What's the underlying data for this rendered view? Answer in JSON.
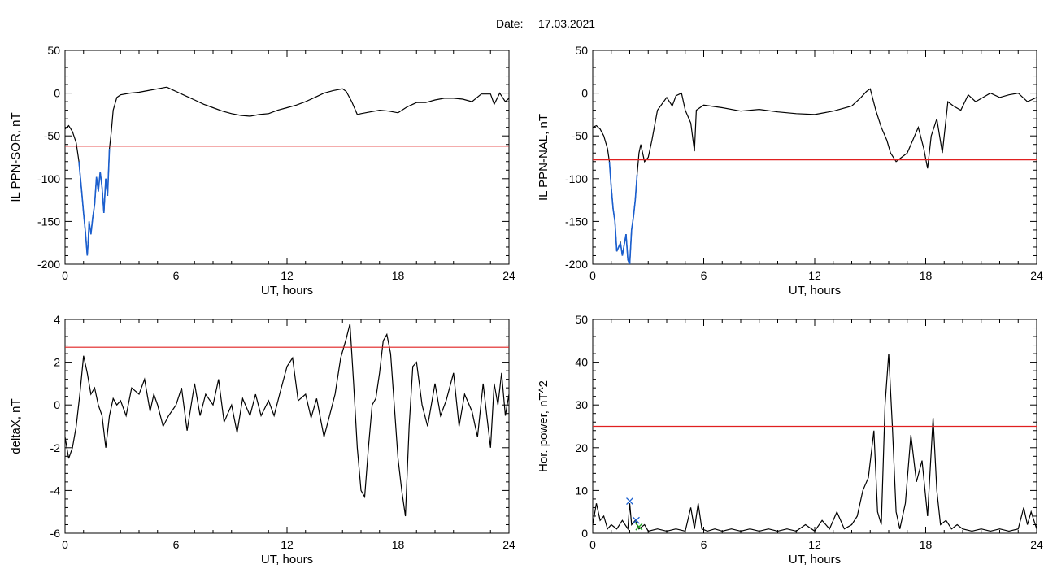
{
  "figure": {
    "date_label": "Date:",
    "date_value": "17.03.2021"
  },
  "chart_data": [
    {
      "type": "line",
      "panel": "top-left",
      "xlabel": "UT, hours",
      "ylabel": "IL PPN-SOR, nT",
      "xlim": [
        0,
        24
      ],
      "ylim": [
        -200,
        50
      ],
      "xticks": [
        0,
        6,
        12,
        18,
        24
      ],
      "yticks": [
        -200,
        -150,
        -100,
        -50,
        0,
        50
      ],
      "threshold": -62,
      "colors": {
        "line": "#000000",
        "highlight": "#1a5fd0",
        "threshold": "#e02020"
      },
      "highlight_below": -62,
      "series": [
        {
          "x": [
            0,
            0.2,
            0.4,
            0.6,
            0.75,
            0.9,
            1.0,
            1.1,
            1.2,
            1.25,
            1.3,
            1.4,
            1.5,
            1.6,
            1.7,
            1.8,
            1.9,
            2.0,
            2.1,
            2.2,
            2.3,
            2.4,
            2.5,
            2.6,
            2.8,
            3.0,
            3.5,
            4.0,
            4.5,
            5.0,
            5.5,
            5.8,
            6.0,
            6.5,
            7.0,
            7.5,
            8.0,
            8.5,
            9.0,
            9.5,
            10.0,
            10.5,
            11.0,
            11.5,
            12.0,
            12.5,
            13.0,
            13.5,
            14.0,
            14.5,
            15.0,
            15.2,
            15.5,
            15.8,
            16.0,
            16.5,
            17.0,
            17.5,
            18.0,
            18.5,
            19.0,
            19.5,
            20.0,
            20.5,
            21.0,
            21.5,
            22.0,
            22.5,
            23.0,
            23.2,
            23.5,
            23.8,
            24.0
          ],
          "y": [
            -42,
            -38,
            -45,
            -58,
            -80,
            -115,
            -140,
            -162,
            -190,
            -175,
            -150,
            -165,
            -145,
            -130,
            -98,
            -115,
            -92,
            -110,
            -140,
            -100,
            -120,
            -65,
            -45,
            -20,
            -5,
            -2,
            0,
            1,
            3,
            5,
            7,
            4,
            2,
            -3,
            -8,
            -13,
            -17,
            -21,
            -24,
            -26,
            -27,
            -25,
            -24,
            -20,
            -17,
            -14,
            -10,
            -5,
            0,
            3,
            5,
            2,
            -10,
            -25,
            -24,
            -22,
            -20,
            -21,
            -23,
            -16,
            -11,
            -11,
            -8,
            -6,
            -6,
            -7,
            -10,
            -1,
            -1,
            -13,
            0,
            -10,
            -6
          ]
        }
      ]
    },
    {
      "type": "line",
      "panel": "top-right",
      "xlabel": "UT, hours",
      "ylabel": "IL PPN-NAL, nT",
      "xlim": [
        0,
        24
      ],
      "ylim": [
        -200,
        50
      ],
      "xticks": [
        0,
        6,
        12,
        18,
        24
      ],
      "yticks": [
        -200,
        -150,
        -100,
        -50,
        0,
        50
      ],
      "threshold": -78,
      "colors": {
        "line": "#000000",
        "highlight": "#1a5fd0",
        "threshold": "#e02020"
      },
      "highlight_below": -78,
      "series": [
        {
          "x": [
            0,
            0.2,
            0.4,
            0.6,
            0.8,
            0.9,
            1.0,
            1.1,
            1.2,
            1.3,
            1.5,
            1.6,
            1.8,
            1.9,
            2.0,
            2.1,
            2.2,
            2.3,
            2.4,
            2.5,
            2.6,
            2.8,
            3.0,
            3.2,
            3.5,
            4.0,
            4.3,
            4.5,
            4.8,
            5.0,
            5.3,
            5.5,
            5.6,
            6.0,
            7.0,
            8.0,
            9.0,
            10.0,
            11.0,
            12.0,
            13.0,
            14.0,
            14.5,
            14.8,
            15.0,
            15.3,
            15.6,
            15.9,
            16.1,
            16.4,
            16.7,
            17.0,
            17.3,
            17.6,
            17.9,
            18.1,
            18.3,
            18.6,
            18.9,
            19.2,
            19.5,
            19.9,
            20.3,
            20.7,
            21.1,
            21.5,
            22.0,
            22.5,
            23.0,
            23.5,
            24.0
          ],
          "y": [
            -40,
            -38,
            -42,
            -50,
            -65,
            -80,
            -110,
            -135,
            -150,
            -185,
            -175,
            -190,
            -165,
            -195,
            -200,
            -160,
            -145,
            -125,
            -95,
            -70,
            -60,
            -80,
            -75,
            -55,
            -20,
            -5,
            -15,
            -3,
            0,
            -20,
            -35,
            -68,
            -20,
            -14,
            -17,
            -21,
            -19,
            -22,
            -24,
            -25,
            -21,
            -15,
            -5,
            2,
            5,
            -20,
            -40,
            -55,
            -70,
            -80,
            -75,
            -70,
            -55,
            -40,
            -65,
            -88,
            -50,
            -30,
            -70,
            -10,
            -15,
            -20,
            -2,
            -10,
            -5,
            0,
            -5,
            -2,
            0,
            -10,
            -5
          ]
        }
      ]
    },
    {
      "type": "line",
      "panel": "bottom-left",
      "xlabel": "UT, hours",
      "ylabel": "deltaX, nT",
      "xlim": [
        0,
        24
      ],
      "ylim": [
        -6,
        4
      ],
      "xticks": [
        0,
        6,
        12,
        18,
        24
      ],
      "yticks": [
        -6,
        -4,
        -2,
        0,
        2,
        4
      ],
      "threshold": 2.7,
      "colors": {
        "line": "#000000",
        "threshold": "#e02020"
      },
      "series": [
        {
          "x": [
            0,
            0.2,
            0.4,
            0.6,
            0.8,
            1.0,
            1.2,
            1.4,
            1.6,
            1.8,
            2.0,
            2.2,
            2.4,
            2.6,
            2.8,
            3.0,
            3.3,
            3.6,
            4.0,
            4.3,
            4.6,
            4.8,
            5.0,
            5.3,
            5.6,
            6.0,
            6.3,
            6.6,
            7.0,
            7.3,
            7.6,
            8.0,
            8.3,
            8.6,
            9.0,
            9.3,
            9.6,
            10.0,
            10.3,
            10.6,
            11.0,
            11.3,
            11.6,
            12.0,
            12.3,
            12.6,
            13.0,
            13.3,
            13.6,
            14.0,
            14.3,
            14.6,
            14.9,
            15.2,
            15.4,
            15.6,
            15.8,
            16.0,
            16.2,
            16.4,
            16.6,
            16.8,
            17.0,
            17.2,
            17.4,
            17.6,
            17.8,
            18.0,
            18.2,
            18.4,
            18.6,
            18.8,
            19.0,
            19.3,
            19.6,
            20.0,
            20.3,
            20.6,
            21.0,
            21.3,
            21.6,
            22.0,
            22.3,
            22.6,
            22.8,
            23.0,
            23.2,
            23.4,
            23.6,
            23.8,
            24.0
          ],
          "y": [
            -1.5,
            -2.5,
            -2.0,
            -1.0,
            0.5,
            2.3,
            1.5,
            0.5,
            0.8,
            0.0,
            -0.5,
            -2.0,
            -0.5,
            0.3,
            0.0,
            0.2,
            -0.5,
            0.8,
            0.5,
            1.2,
            -0.3,
            0.5,
            0.0,
            -1.0,
            -0.5,
            0.0,
            0.8,
            -1.2,
            1.0,
            -0.5,
            0.5,
            0.0,
            1.2,
            -0.8,
            0.0,
            -1.3,
            0.3,
            -0.5,
            0.5,
            -0.5,
            0.2,
            -0.5,
            0.5,
            1.8,
            2.2,
            0.2,
            0.5,
            -0.6,
            0.3,
            -1.5,
            -0.5,
            0.5,
            2.2,
            3.1,
            3.8,
            1.0,
            -2.0,
            -4.0,
            -4.3,
            -2.0,
            0.0,
            0.3,
            1.5,
            3.0,
            3.3,
            2.4,
            0.0,
            -2.5,
            -4.0,
            -5.2,
            -1.0,
            1.8,
            2.0,
            0.0,
            -1.0,
            1.0,
            -0.5,
            0.2,
            1.5,
            -1.0,
            0.5,
            -0.3,
            -1.5,
            1.0,
            -0.5,
            -2.0,
            1.0,
            0.0,
            1.5,
            -0.5,
            0.5
          ]
        }
      ]
    },
    {
      "type": "line",
      "panel": "bottom-right",
      "xlabel": "UT, hours",
      "ylabel": "Hor. power, nT^2",
      "xlim": [
        0,
        24
      ],
      "ylim": [
        0,
        50
      ],
      "xticks": [
        0,
        6,
        12,
        18,
        24
      ],
      "yticks": [
        0,
        10,
        20,
        30,
        40,
        50
      ],
      "threshold": 25,
      "colors": {
        "line": "#000000",
        "threshold": "#e02020",
        "marker_blue": "#1a5fd0",
        "marker_green": "#20a020"
      },
      "markers": [
        {
          "x": 2.0,
          "y": 7.5,
          "color": "blue"
        },
        {
          "x": 2.35,
          "y": 3.0,
          "color": "blue"
        },
        {
          "x": 2.5,
          "y": 1.5,
          "color": "green"
        }
      ],
      "series": [
        {
          "x": [
            0,
            0.2,
            0.4,
            0.6,
            0.8,
            1.0,
            1.3,
            1.6,
            1.9,
            2.0,
            2.1,
            2.3,
            2.5,
            2.8,
            3.0,
            3.5,
            4.0,
            4.5,
            5.0,
            5.3,
            5.5,
            5.7,
            5.9,
            6.2,
            6.6,
            7.0,
            7.5,
            8.0,
            8.5,
            9.0,
            9.5,
            10.0,
            10.5,
            11.0,
            11.5,
            12.0,
            12.4,
            12.8,
            13.2,
            13.6,
            14.0,
            14.3,
            14.6,
            14.9,
            15.2,
            15.4,
            15.6,
            15.8,
            16.0,
            16.2,
            16.4,
            16.6,
            16.9,
            17.2,
            17.5,
            17.8,
            18.1,
            18.4,
            18.6,
            18.8,
            19.1,
            19.4,
            19.7,
            20.0,
            20.5,
            21.0,
            21.5,
            22.0,
            22.5,
            23.0,
            23.3,
            23.5,
            23.7,
            24.0
          ],
          "y": [
            2,
            7,
            3,
            4,
            1,
            2,
            1,
            3,
            1,
            7,
            2,
            3,
            1,
            2,
            0.5,
            1,
            0.5,
            1,
            0.5,
            6,
            1,
            7,
            1,
            0.5,
            1,
            0.5,
            1,
            0.5,
            1,
            0.5,
            1,
            0.5,
            1,
            0.5,
            2,
            0.5,
            3,
            1,
            5,
            1,
            2,
            4,
            10,
            13,
            24,
            5,
            2,
            30,
            42,
            25,
            5,
            1,
            7,
            23,
            12,
            17,
            4,
            27,
            10,
            2,
            3,
            1,
            2,
            1,
            0.5,
            1,
            0.5,
            1,
            0.5,
            1,
            6,
            2,
            5,
            1
          ]
        }
      ]
    }
  ]
}
